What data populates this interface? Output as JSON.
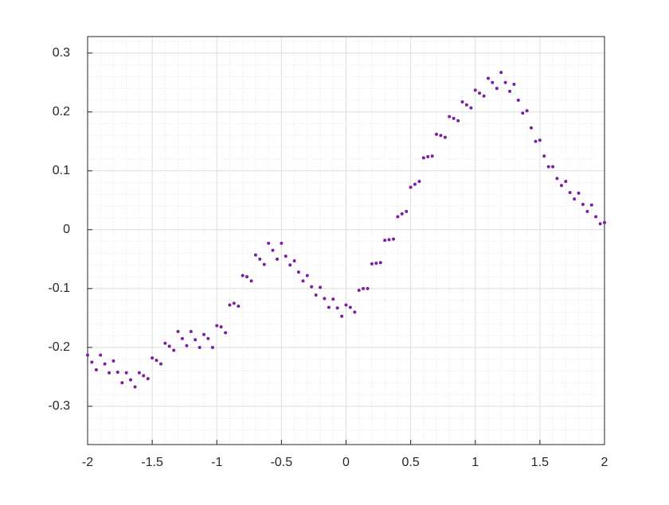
{
  "chart_data": {
    "type": "scatter",
    "color": "#7b1fa2",
    "x": [
      -2,
      -1.9,
      -1.8,
      -1.7,
      -1.6,
      -1.5,
      -1.4,
      -1.3,
      -1.2,
      -1.1,
      -1,
      -0.9,
      -0.8,
      -0.7,
      -0.6,
      -0.5,
      -0.4,
      -0.3,
      -0.2,
      -0.1,
      0,
      0.1,
      0.2,
      0.3,
      0.4,
      0.5,
      0.6,
      0.7,
      0.8,
      0.9,
      1,
      1.1,
      1.2,
      1.3,
      1.4,
      1.5,
      1.6,
      1.7,
      1.8,
      1.9,
      2,
      -1.967,
      -1.867,
      -1.767,
      -1.667,
      -1.567,
      -1.467,
      -1.367,
      -1.267,
      -1.167,
      -1.067,
      -0.967,
      -0.867,
      -0.767,
      -0.667,
      -0.567,
      -0.467,
      -0.367,
      -0.267,
      -0.167,
      -0.067,
      0.033,
      0.133,
      0.233,
      0.333,
      0.433,
      0.533,
      0.633,
      0.733,
      0.833,
      0.933,
      1.033,
      1.133,
      1.233,
      1.333,
      1.433,
      1.533,
      1.633,
      1.733,
      1.833,
      1.933,
      -1.933,
      -1.833,
      -1.733,
      -1.633,
      -1.533,
      -1.433,
      -1.333,
      -1.233,
      -1.133,
      -1.033,
      -0.933,
      -0.833,
      -0.733,
      -0.633,
      -0.533,
      -0.433,
      -0.333,
      -0.233,
      -0.133,
      -0.033,
      0.067,
      0.167,
      0.267,
      0.367,
      0.467,
      0.567,
      0.667,
      0.767,
      0.867,
      0.967,
      1.067,
      1.167,
      1.267,
      1.367,
      1.467,
      1.567,
      1.667,
      1.767,
      1.867,
      1.967
    ],
    "y": [
      -0.213,
      -0.213,
      -0.223,
      -0.243,
      -0.243,
      -0.218,
      -0.193,
      -0.173,
      -0.173,
      -0.178,
      -0.163,
      -0.128,
      -0.078,
      -0.043,
      -0.023,
      -0.023,
      -0.053,
      -0.078,
      -0.098,
      -0.118,
      -0.128,
      -0.103,
      -0.058,
      -0.018,
      0.022,
      0.072,
      0.122,
      0.162,
      0.192,
      0.217,
      0.237,
      0.257,
      0.267,
      0.247,
      0.202,
      0.152,
      0.107,
      0.082,
      0.062,
      0.042,
      0.012,
      -0.225,
      -0.228,
      -0.242,
      -0.255,
      -0.248,
      -0.222,
      -0.198,
      -0.185,
      -0.187,
      -0.185,
      -0.165,
      -0.125,
      -0.08,
      -0.05,
      -0.035,
      -0.045,
      -0.072,
      -0.097,
      -0.117,
      -0.133,
      -0.132,
      -0.1,
      -0.057,
      -0.017,
      0.027,
      0.077,
      0.124,
      0.16,
      0.189,
      0.212,
      0.232,
      0.25,
      0.25,
      0.22,
      0.173,
      0.125,
      0.087,
      0.063,
      0.043,
      0.022,
      -0.238,
      -0.243,
      -0.26,
      -0.267,
      -0.253,
      -0.228,
      -0.205,
      -0.197,
      -0.2,
      -0.2,
      -0.175,
      -0.13,
      -0.087,
      -0.059,
      -0.05,
      -0.06,
      -0.087,
      -0.111,
      -0.132,
      -0.147,
      -0.14,
      -0.1,
      -0.056,
      -0.016,
      0.031,
      0.082,
      0.125,
      0.157,
      0.185,
      0.207,
      0.227,
      0.24,
      0.235,
      0.198,
      0.15,
      0.107,
      0.075,
      0.052,
      0.031,
      0.01
    ],
    "xlim": [
      -2,
      2
    ],
    "ylim": [
      -0.365,
      0.328
    ],
    "xticks": [
      -2,
      -1.5,
      -1,
      -0.5,
      0,
      0.5,
      1,
      1.5,
      2
    ],
    "yticks": [
      -0.3,
      -0.2,
      -0.1,
      0,
      0.1,
      0.2,
      0.3
    ],
    "grid": true,
    "minor_grid": true
  }
}
